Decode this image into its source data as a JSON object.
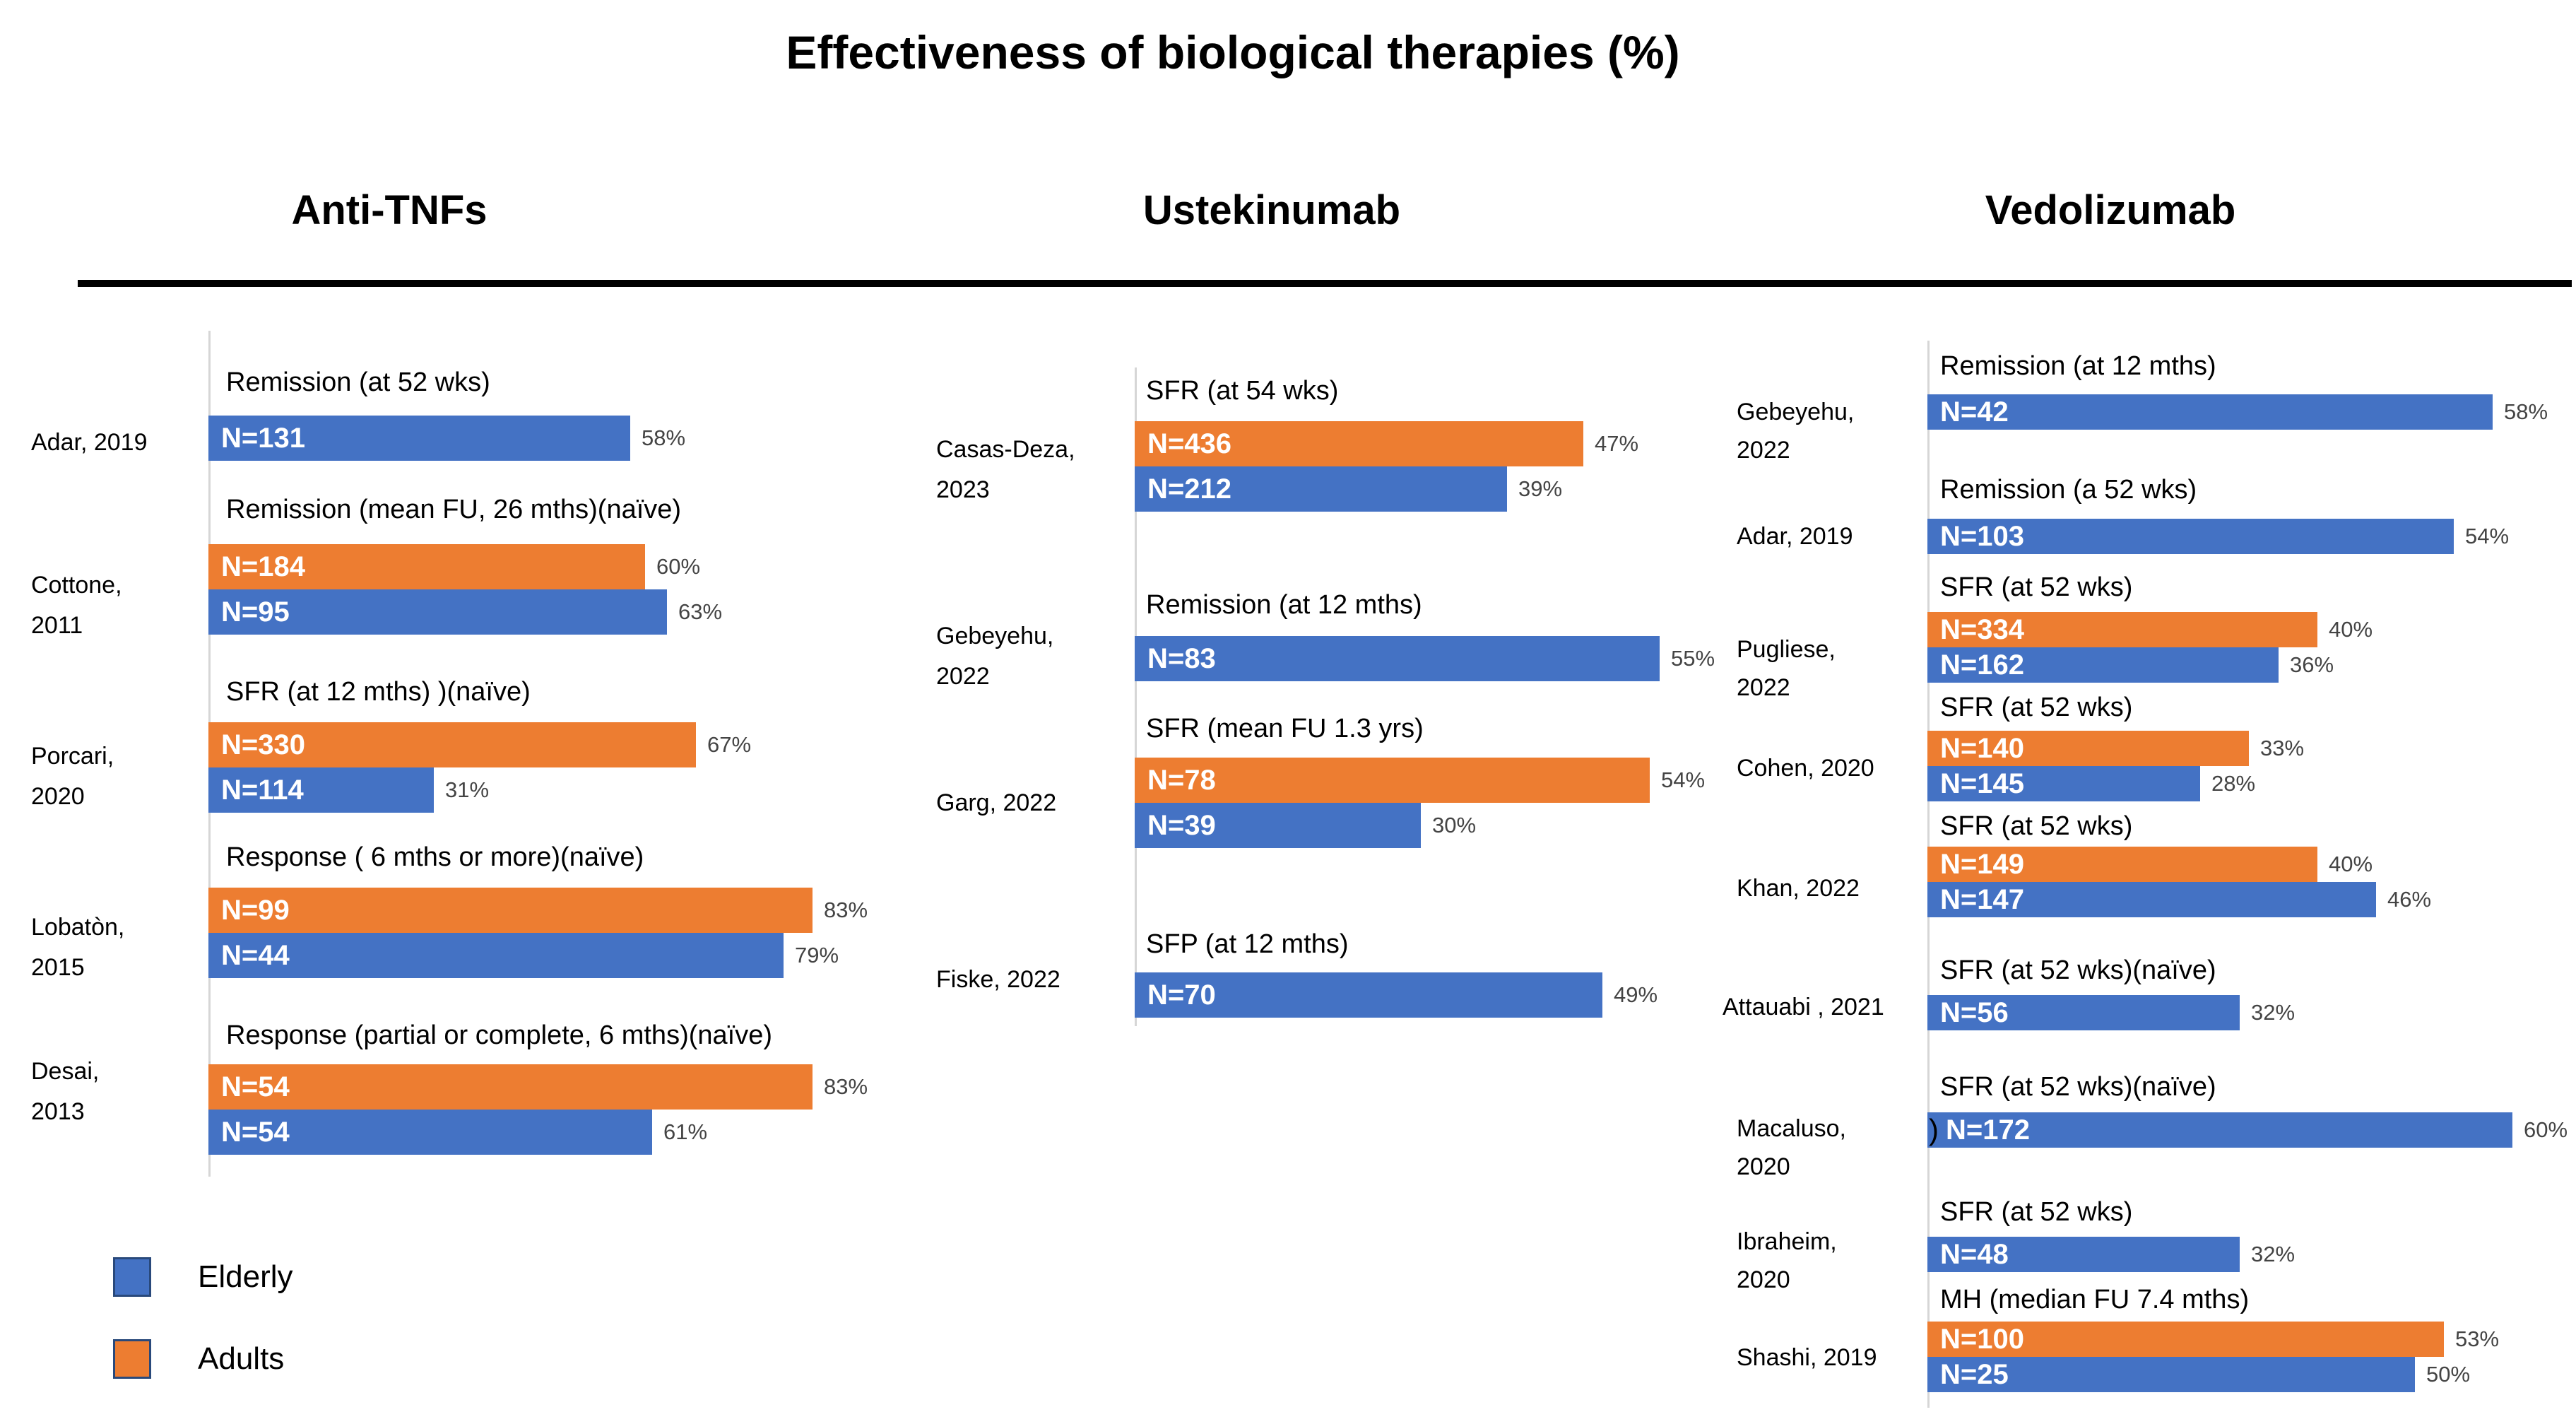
{
  "title": "Effectiveness of biological therapies (%)",
  "legend": [
    {
      "label": "Elderly",
      "color": "#4472C4"
    },
    {
      "label": "Adults",
      "color": "#ED7D31"
    }
  ],
  "series_colors": {
    "Elderly": "#4472C4",
    "Adults": "#ED7D31"
  },
  "chart_data": {
    "type": "bar",
    "orientation": "horizontal",
    "value_unit": "percent",
    "axis": {
      "min": 0,
      "gridlines": false
    },
    "legend_position": "bottom-left",
    "panels": [
      {
        "header": "Anti-TNFs",
        "groups": [
          {
            "study_lines": [
              "Adar, 2019"
            ],
            "measure": "Remission (at 52 wks)",
            "bars": [
              {
                "series": "Elderly",
                "n_label": "N=131",
                "n": 131,
                "value_pct": 58,
                "value_label": "58%"
              }
            ]
          },
          {
            "study_lines": [
              "Cottone,",
              "2011"
            ],
            "measure": "Remission (mean FU, 26 mths)(naïve)",
            "bars": [
              {
                "series": "Adults",
                "n_label": "N=184",
                "n": 184,
                "value_pct": 60,
                "value_label": "60%"
              },
              {
                "series": "Elderly",
                "n_label": "N=95",
                "n": 95,
                "value_pct": 63,
                "value_label": "63%"
              }
            ]
          },
          {
            "study_lines": [
              "Porcari,",
              "2020"
            ],
            "measure": "SFR (at 12 mths) )(naïve)",
            "bars": [
              {
                "series": "Adults",
                "n_label": "N=330",
                "n": 330,
                "value_pct": 67,
                "value_label": "67%"
              },
              {
                "series": "Elderly",
                "n_label": "N=114",
                "n": 114,
                "value_pct": 31,
                "value_label": "31%"
              }
            ]
          },
          {
            "study_lines": [
              "Lobatòn,",
              "2015"
            ],
            "measure": "Response ( 6 mths or more)(naïve)",
            "bars": [
              {
                "series": "Adults",
                "n_label": "N=99",
                "n": 99,
                "value_pct": 83,
                "value_label": "83%"
              },
              {
                "series": "Elderly",
                "n_label": "N=44",
                "n": 44,
                "value_pct": 79,
                "value_label": "79%"
              }
            ]
          },
          {
            "study_lines": [
              "Desai,",
              "2013"
            ],
            "measure": "Response (partial or complete, 6 mths)(naïve)",
            "bars": [
              {
                "series": "Adults",
                "n_label": "N=54",
                "n": 54,
                "value_pct": 83,
                "value_label": "83%"
              },
              {
                "series": "Elderly",
                "n_label": "N=54",
                "n": 54,
                "value_pct": 61,
                "value_label": "61%"
              }
            ]
          }
        ]
      },
      {
        "header": "Ustekinumab",
        "groups": [
          {
            "study_lines": [
              "Casas-Deza,",
              "2023"
            ],
            "measure": "SFR (at 54 wks)",
            "bars": [
              {
                "series": "Adults",
                "n_label": "N=436",
                "n": 436,
                "value_pct": 47,
                "value_label": "47%"
              },
              {
                "series": "Elderly",
                "n_label": "N=212",
                "n": 212,
                "value_pct": 39,
                "value_label": "39%"
              }
            ]
          },
          {
            "study_lines": [
              "Gebeyehu,",
              "2022"
            ],
            "measure": "Remission (at 12 mths)",
            "bars": [
              {
                "series": "Elderly",
                "n_label": "N=83",
                "n": 83,
                "value_pct": 55,
                "value_label": "55%"
              }
            ]
          },
          {
            "study_lines": [
              "Garg, 2022"
            ],
            "measure": "SFR (mean FU 1.3 yrs)",
            "bars": [
              {
                "series": "Adults",
                "n_label": "N=78",
                "n": 78,
                "value_pct": 54,
                "value_label": "54%"
              },
              {
                "series": "Elderly",
                "n_label": "N=39",
                "n": 39,
                "value_pct": 30,
                "value_label": "30%"
              }
            ]
          },
          {
            "study_lines": [
              "Fiske, 2022"
            ],
            "measure": "SFP (at 12 mths)",
            "bars": [
              {
                "series": "Elderly",
                "n_label": "N=70",
                "n": 70,
                "value_pct": 49,
                "value_label": "49%"
              }
            ]
          }
        ]
      },
      {
        "header": "Vedolizumab",
        "groups": [
          {
            "study_lines": [
              "Gebeyehu,",
              "2022"
            ],
            "measure": "Remission (at 12 mths)",
            "bars": [
              {
                "series": "Elderly",
                "n_label": "N=42",
                "n": 42,
                "value_pct": 58,
                "value_label": "58%"
              }
            ]
          },
          {
            "study_lines": [
              "Adar, 2019"
            ],
            "measure": "Remission (a 52 wks)",
            "bars": [
              {
                "series": "Elderly",
                "n_label": "N=103",
                "n": 103,
                "value_pct": 54,
                "value_label": "54%"
              }
            ]
          },
          {
            "study_lines": [
              "Pugliese,",
              "2022"
            ],
            "measure": "SFR (at 52 wks)",
            "bars": [
              {
                "series": "Adults",
                "n_label": "N=334",
                "n": 334,
                "value_pct": 40,
                "value_label": "40%"
              },
              {
                "series": "Elderly",
                "n_label": "N=162",
                "n": 162,
                "value_pct": 36,
                "value_label": "36%"
              }
            ]
          },
          {
            "study_lines": [
              "Cohen, 2020"
            ],
            "measure": "SFR (at 52 wks)",
            "bars": [
              {
                "series": "Adults",
                "n_label": "N=140",
                "n": 140,
                "value_pct": 33,
                "value_label": "33%"
              },
              {
                "series": "Elderly",
                "n_label": "N=145",
                "n": 145,
                "value_pct": 28,
                "value_label": "28%"
              }
            ]
          },
          {
            "study_lines": [
              "Khan, 2022"
            ],
            "measure": "SFR (at 52 wks)",
            "bars": [
              {
                "series": "Adults",
                "n_label": "N=149",
                "n": 149,
                "value_pct": 40,
                "value_label": "40%"
              },
              {
                "series": "Elderly",
                "n_label": "N=147",
                "n": 147,
                "value_pct": 46,
                "value_label": "46%"
              }
            ]
          },
          {
            "study_lines": [
              "Attauabi , 2021"
            ],
            "measure": "SFR (at 52 wks)(naïve)",
            "bars": [
              {
                "series": "Elderly",
                "n_label": "N=56",
                "n": 56,
                "value_pct": 32,
                "value_label": "32%"
              }
            ]
          },
          {
            "study_lines": [
              "Macaluso,",
              "2020"
            ],
            "measure": "SFR (at 52 wks)(naïve)",
            "bars": [
              {
                "series": "Elderly",
                "prefix": ")",
                "n_label": "N=172",
                "n": 172,
                "value_pct": 60,
                "value_label": "60%"
              }
            ]
          },
          {
            "study_lines": [
              "Ibraheim,",
              "2020"
            ],
            "measure": "SFR (at 52 wks)",
            "bars": [
              {
                "series": "Elderly",
                "n_label": "N=48",
                "n": 48,
                "value_pct": 32,
                "value_label": "32%"
              }
            ]
          },
          {
            "study_lines": [
              "Shashi, 2019"
            ],
            "measure": "MH (median FU 7.4 mths)",
            "bars": [
              {
                "series": "Adults",
                "n_label": "N=100",
                "n": 100,
                "value_pct": 53,
                "value_label": "53%"
              },
              {
                "series": "Elderly",
                "n_label": "N=25",
                "n": 25,
                "value_pct": 50,
                "value_label": "50%"
              }
            ]
          }
        ]
      }
    ]
  }
}
